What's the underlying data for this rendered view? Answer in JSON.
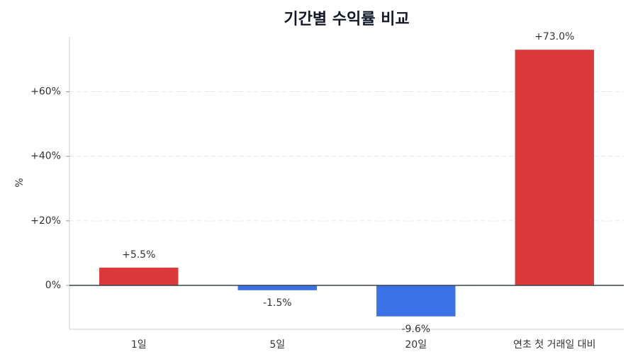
{
  "chart_data": {
    "type": "bar",
    "title": "기간별 수익률 비교",
    "y_label": "%",
    "categories": [
      "1일",
      "5일",
      "20일",
      "연초 첫 거래일 대비"
    ],
    "values": [
      5.5,
      -1.5,
      -9.6,
      73.0
    ],
    "value_labels": [
      "+5.5%",
      "-1.5%",
      "-9.6%",
      "+73.0%"
    ],
    "colors": [
      "#dc3a3a",
      "#3b73e6",
      "#3b73e6",
      "#dc3a3a"
    ],
    "ylim": [
      -13.6,
      77
    ],
    "yticks": [
      {
        "value": 0,
        "label": "0%"
      },
      {
        "value": 20,
        "label": "+20%"
      },
      {
        "value": 40,
        "label": "+40%"
      },
      {
        "value": 60,
        "label": "+60%"
      }
    ],
    "grid": true
  }
}
